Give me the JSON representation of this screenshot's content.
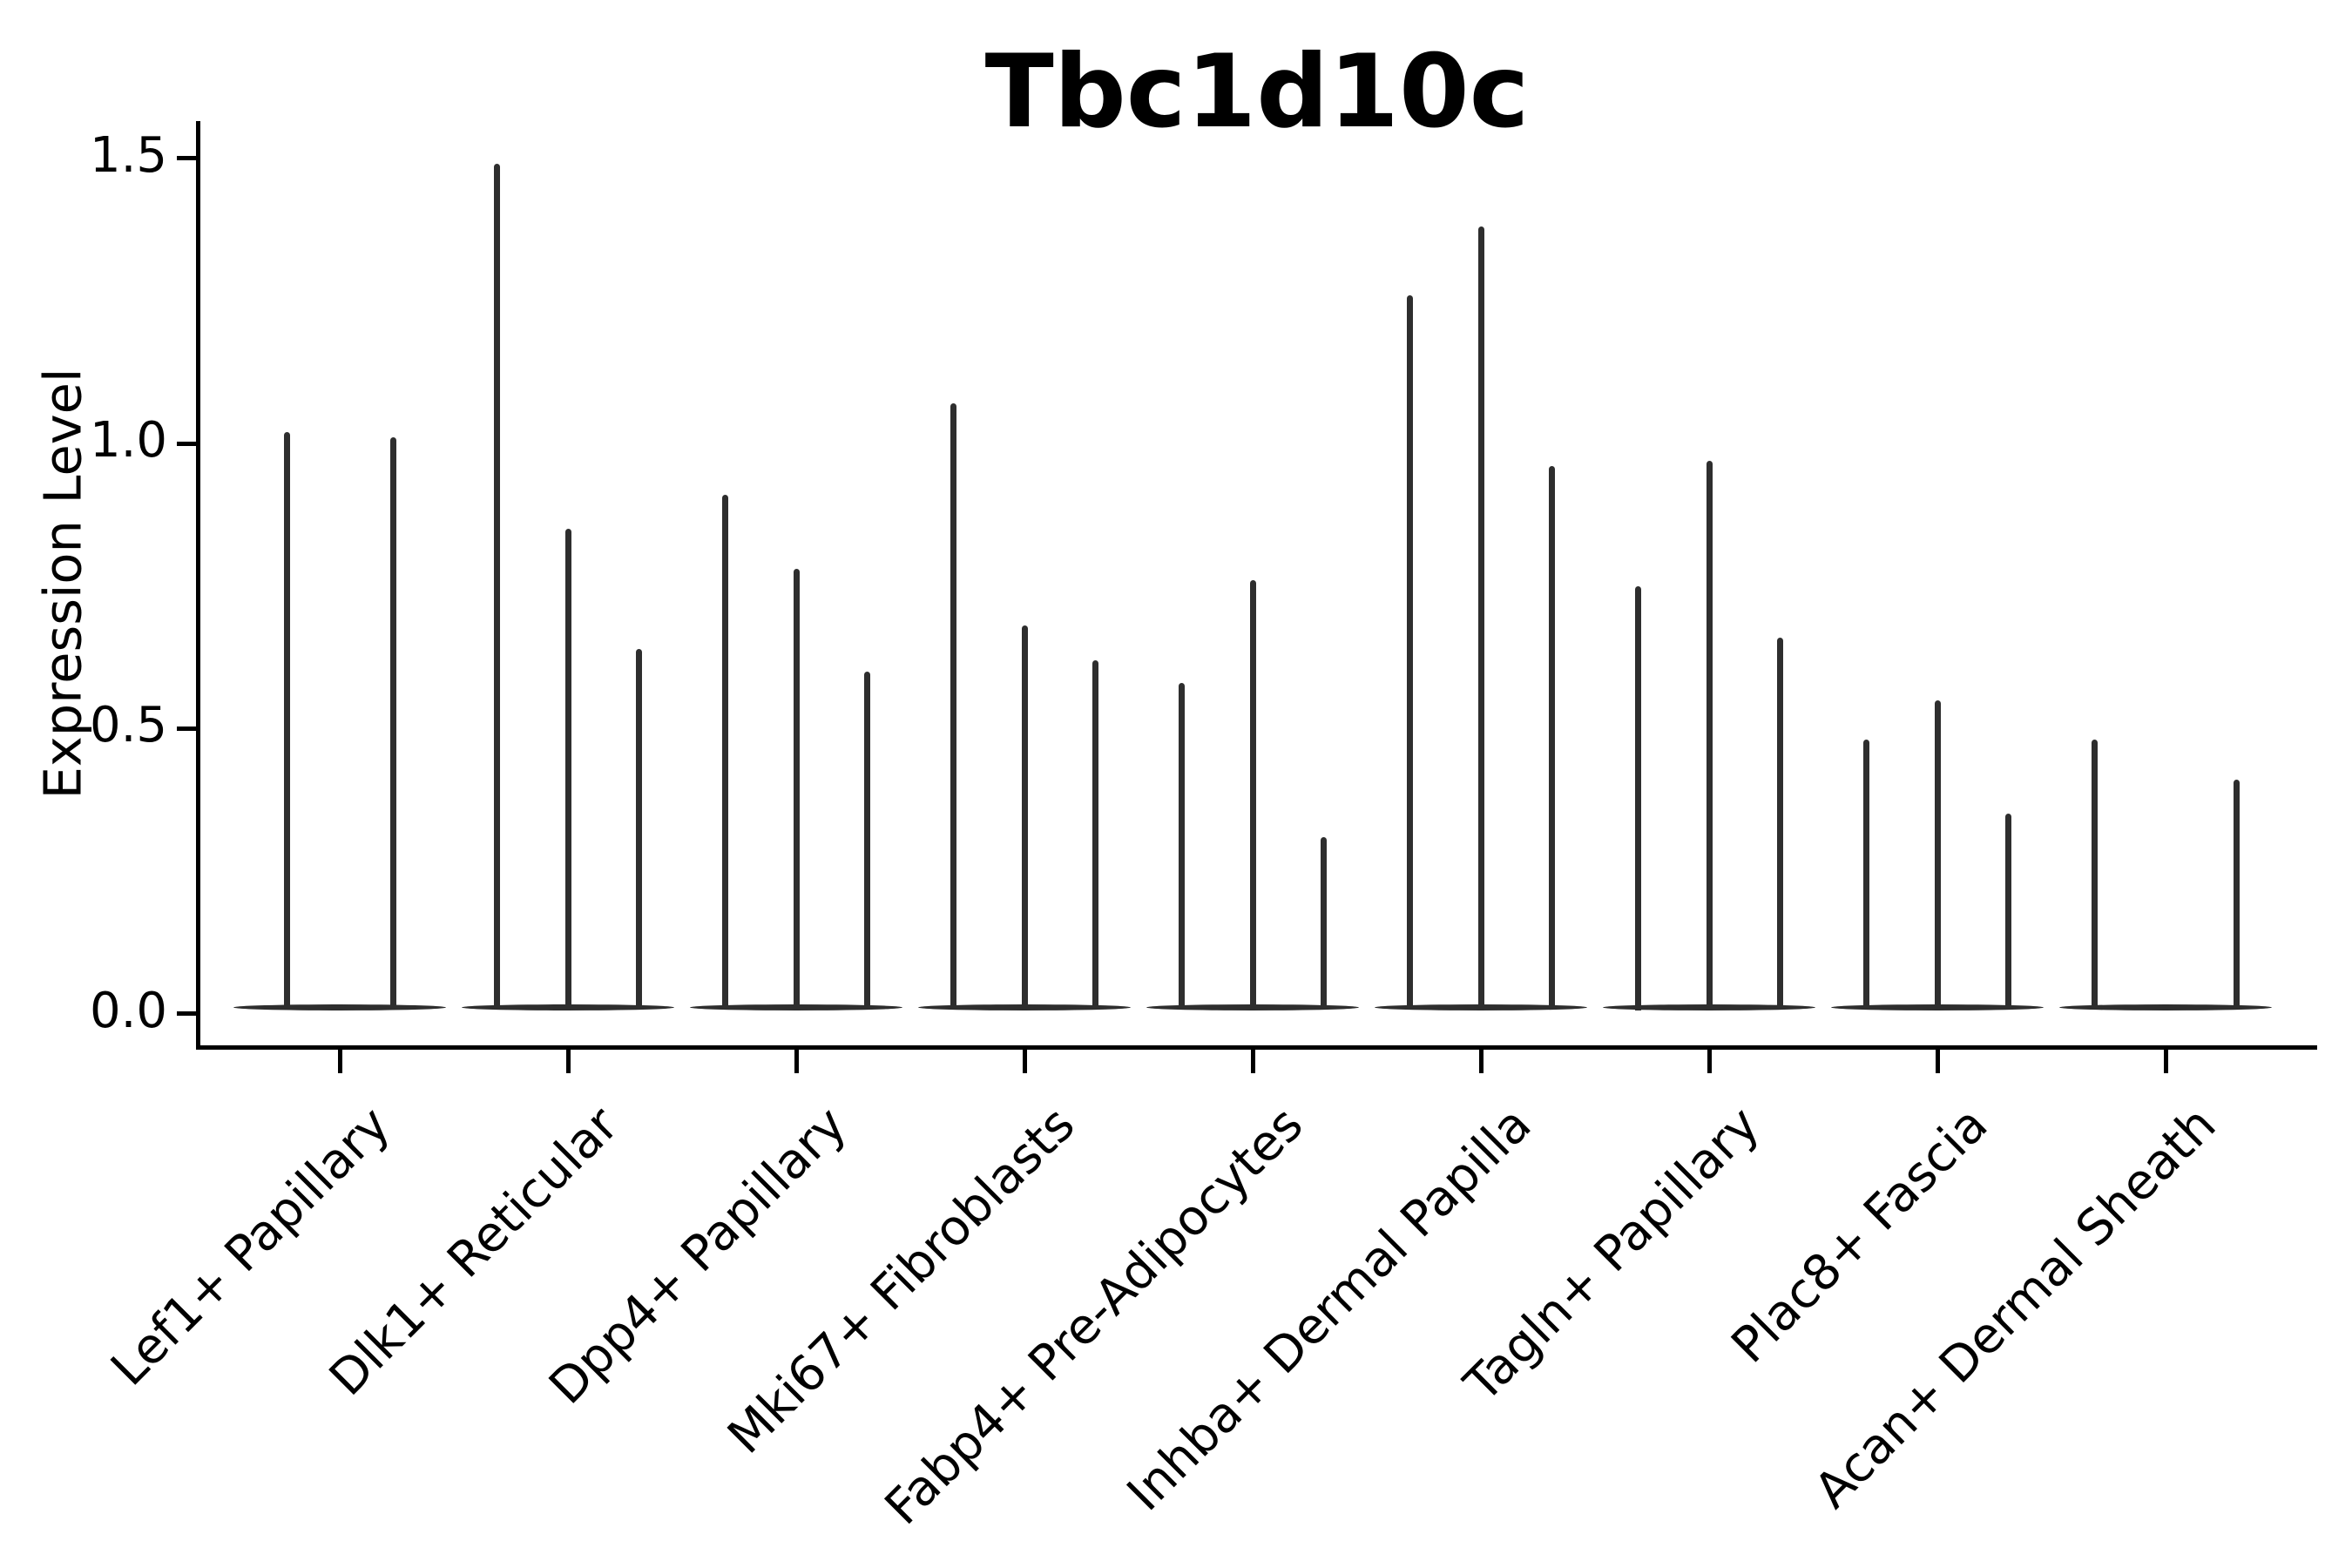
{
  "chart_data": {
    "type": "violin",
    "title": "Tbc1d10c",
    "ylabel": "Expression Level",
    "xlabel": "",
    "ytick_labels": [
      "0.0",
      "0.5",
      "1.0",
      "1.5"
    ],
    "ytick_values": [
      0.0,
      0.5,
      1.0,
      1.5
    ],
    "ylim": [
      -0.06,
      1.565
    ],
    "grid": false,
    "legend_position": "none",
    "style_note": "needle-like violins collapsed at zero expression with a flat base per category",
    "categories": [
      "Lef1+ Papillary",
      "Dlk1+ Reticular",
      "Dpp4+ Papillary",
      "Mki67+ Fibroblasts",
      "Fabp4+ Pre-Adipocytes",
      "Inhba+ Dermal Papilla",
      "Tagln+ Papillary",
      "Plac8+ Fascia",
      "Acan+ Dermal Sheath"
    ],
    "groups": [
      {
        "category": "Lef1+ Papillary",
        "violins": [
          {
            "position": 0.25,
            "peak": 1.02
          },
          {
            "position": 0.75,
            "peak": 1.01
          }
        ]
      },
      {
        "category": "Dlk1+ Reticular",
        "violins": [
          {
            "position": 0.167,
            "peak": 1.49
          },
          {
            "position": 0.5,
            "peak": 0.85
          },
          {
            "position": 0.833,
            "peak": 0.64
          }
        ]
      },
      {
        "category": "Dpp4+ Papillary",
        "violins": [
          {
            "position": 0.167,
            "peak": 0.91
          },
          {
            "position": 0.5,
            "peak": 0.78
          },
          {
            "position": 0.833,
            "peak": 0.6
          }
        ]
      },
      {
        "category": "Mki67+ Fibroblasts",
        "violins": [
          {
            "position": 0.167,
            "peak": 1.07
          },
          {
            "position": 0.5,
            "peak": 0.68
          },
          {
            "position": 0.833,
            "peak": 0.62
          }
        ]
      },
      {
        "category": "Fabp4+ Pre-Adipocytes",
        "violins": [
          {
            "position": 0.167,
            "peak": 0.58
          },
          {
            "position": 0.5,
            "peak": 0.76
          },
          {
            "position": 0.833,
            "peak": 0.31
          }
        ]
      },
      {
        "category": "Inhba+ Dermal Papilla",
        "violins": [
          {
            "position": 0.167,
            "peak": 1.26
          },
          {
            "position": 0.5,
            "peak": 1.38
          },
          {
            "position": 0.833,
            "peak": 0.96
          }
        ]
      },
      {
        "category": "Tagln+ Papillary",
        "violins": [
          {
            "position": 0.167,
            "peak": 0.75
          },
          {
            "position": 0.5,
            "peak": 0.97
          },
          {
            "position": 0.833,
            "peak": 0.66
          }
        ]
      },
      {
        "category": "Plac8+ Fascia",
        "violins": [
          {
            "position": 0.167,
            "peak": 0.48
          },
          {
            "position": 0.5,
            "peak": 0.55
          },
          {
            "position": 0.833,
            "peak": 0.35
          }
        ]
      },
      {
        "category": "Acan+ Dermal Sheath",
        "violins": [
          {
            "position": 0.167,
            "peak": 0.48
          },
          {
            "position": 0.833,
            "peak": 0.41
          }
        ]
      }
    ],
    "colors": {
      "spike": "#2e2e2e",
      "axis": "#000000",
      "text": "#000000",
      "background": "#ffffff"
    }
  }
}
